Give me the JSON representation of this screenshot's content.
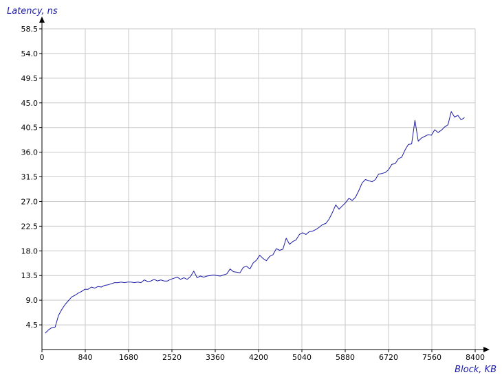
{
  "chart_data": {
    "type": "line",
    "title": "",
    "xlabel": "Block, KB",
    "ylabel": "Latency, ns",
    "xlim": [
      0,
      8400
    ],
    "ylim": [
      0,
      58.5
    ],
    "xticks": [
      "0",
      "840",
      "1680",
      "2520",
      "3360",
      "4200",
      "5040",
      "5880",
      "6720",
      "7560",
      "8400"
    ],
    "yticks": [
      "4.5",
      "9.0",
      "13.5",
      "18.0",
      "22.5",
      "27.0",
      "31.5",
      "36.0",
      "40.5",
      "45.0",
      "49.5",
      "54.0",
      "58.5"
    ],
    "grid": true,
    "line_color": "#1a1aa6",
    "series": [
      {
        "x": [
          64,
          128,
          192,
          256,
          320,
          384,
          448,
          512,
          576,
          640,
          704,
          768,
          832,
          896,
          960,
          1024,
          1088,
          1152,
          1216,
          1280,
          1344,
          1408,
          1472,
          1536,
          1600,
          1664,
          1728,
          1792,
          1856,
          1920,
          1984,
          2048,
          2112,
          2176,
          2240,
          2304,
          2368,
          2432,
          2496,
          2560,
          2624,
          2688,
          2752,
          2816,
          2880,
          2944,
          3008,
          3072,
          3136,
          3200,
          3264,
          3328,
          3392,
          3456,
          3520,
          3584,
          3648,
          3712,
          3776,
          3840,
          3904,
          3968,
          4032,
          4096,
          4160,
          4224,
          4288,
          4352,
          4416,
          4480,
          4544,
          4608,
          4672,
          4736,
          4800,
          4864,
          4928,
          4992,
          5056,
          5120,
          5184,
          5248,
          5312,
          5376,
          5440,
          5504,
          5568,
          5632,
          5696,
          5760,
          5824,
          5888,
          5952,
          6016,
          6080,
          6144,
          6208,
          6272,
          6336,
          6400,
          6464,
          6528,
          6592,
          6656,
          6720,
          6784,
          6848,
          6912,
          6976,
          7040,
          7104,
          7168,
          7232,
          7296,
          7360,
          7424,
          7488,
          7552,
          7616,
          7680,
          7744,
          7808,
          7872,
          7936,
          8000,
          8064,
          8128,
          8192
        ],
        "y": [
          3.0,
          3.6,
          4.0,
          4.1,
          6.2,
          7.3,
          8.2,
          8.9,
          9.6,
          9.9,
          10.3,
          10.6,
          11.0,
          11.0,
          11.4,
          11.2,
          11.5,
          11.4,
          11.7,
          11.8,
          12.0,
          12.2,
          12.2,
          12.3,
          12.2,
          12.3,
          12.3,
          12.2,
          12.3,
          12.2,
          12.7,
          12.4,
          12.5,
          12.8,
          12.5,
          12.7,
          12.5,
          12.5,
          12.8,
          13.0,
          13.2,
          12.8,
          13.1,
          12.8,
          13.3,
          14.3,
          13.1,
          13.4,
          13.2,
          13.4,
          13.5,
          13.6,
          13.5,
          13.4,
          13.6,
          13.8,
          14.7,
          14.2,
          14.1,
          14.0,
          15.0,
          15.2,
          14.7,
          15.8,
          16.3,
          17.2,
          16.6,
          16.2,
          17.0,
          17.3,
          18.4,
          18.1,
          18.3,
          20.3,
          19.2,
          19.7,
          20.0,
          21.0,
          21.3,
          21.0,
          21.5,
          21.6,
          21.9,
          22.3,
          22.8,
          23.0,
          23.8,
          25.0,
          26.4,
          25.6,
          26.2,
          26.8,
          27.6,
          27.2,
          27.8,
          29.0,
          30.4,
          31.0,
          30.8,
          30.6,
          31.0,
          32.0,
          32.1,
          32.3,
          32.8,
          33.8,
          33.9,
          34.8,
          35.1,
          36.4,
          37.4,
          37.5,
          41.8,
          38.0,
          38.6,
          38.9,
          39.2,
          39.1,
          40.1,
          39.6,
          40.0,
          40.6,
          41.0,
          43.4,
          42.4,
          42.7,
          41.9,
          42.3
        ]
      }
    ]
  }
}
